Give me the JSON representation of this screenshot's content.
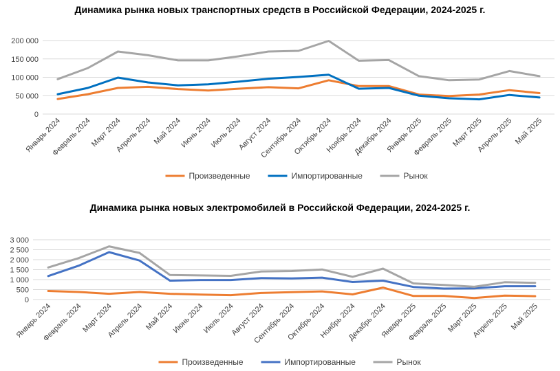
{
  "chart_data": [
    {
      "type": "line",
      "title": "Динамика рынка новых транспортных средств в Российской Федерации, 2024-2025 г.",
      "categories": [
        "Январь 2024",
        "Февраль 2024",
        "Март 2024",
        "Апрель 2024",
        "Май 2024",
        "Июнь 2024",
        "Июль 2024",
        "Август 2024",
        "Сентябрь 2024",
        "Октябрь 2024",
        "Ноябрь 2024",
        "Декабрь 2024",
        "Январь 2025",
        "Февраль 2025",
        "Март 2025",
        "Апрель 2025",
        "Май 2025"
      ],
      "ylim": [
        0,
        200000
      ],
      "yticks": [
        0,
        50000,
        100000,
        150000,
        200000
      ],
      "ytick_labels": [
        "0",
        "50 000",
        "100 000",
        "150 000",
        "200 000"
      ],
      "grid": true,
      "legend": "bottom",
      "series": [
        {
          "name": "Произведенные",
          "color": "#ED7D31",
          "values": [
            41000,
            54000,
            71000,
            74000,
            68000,
            64000,
            69000,
            73000,
            70000,
            92000,
            76000,
            76000,
            53000,
            49000,
            53000,
            65000,
            57000
          ]
        },
        {
          "name": "Импортированные",
          "color": "#0070C0",
          "values": [
            54000,
            71000,
            99000,
            86000,
            78000,
            81000,
            88000,
            96000,
            101000,
            107000,
            69000,
            71000,
            50000,
            43000,
            40000,
            52000,
            45000
          ]
        },
        {
          "name": "Рынок",
          "color": "#A5A5A5",
          "values": [
            95000,
            125000,
            170000,
            160000,
            146000,
            146000,
            157000,
            170000,
            172000,
            199000,
            145000,
            147000,
            103000,
            92000,
            94000,
            117000,
            103000
          ]
        }
      ]
    },
    {
      "type": "line",
      "title": "Динамика рынка новых электромобилей в Российской Федерации, 2024-2025 г.",
      "categories": [
        "Январь 2024",
        "Февраль 2024",
        "Март 2024",
        "Апрель 2024",
        "Май 2024",
        "Июнь 2024",
        "Июль 2024",
        "Август 2024",
        "Сентябрь 2024",
        "Октябрь 2024",
        "Ноябрь 2024",
        "Декабрь 2024",
        "Январь 2025",
        "Февраль 2025",
        "Март 2025",
        "Апрель 2025",
        "Май 2025"
      ],
      "ylim": [
        0,
        3000
      ],
      "yticks": [
        0,
        500,
        1000,
        1500,
        2000,
        2500,
        3000
      ],
      "ytick_labels": [
        "0",
        "500",
        "1 000",
        "1 500",
        "2 000",
        "2 500",
        "3 000"
      ],
      "grid": true,
      "legend": "bottom",
      "series": [
        {
          "name": "Произведенные",
          "color": "#ED7D31",
          "values": [
            430,
            380,
            290,
            380,
            290,
            250,
            220,
            330,
            370,
            410,
            260,
            600,
            180,
            180,
            80,
            200,
            170
          ]
        },
        {
          "name": "Импортированные",
          "color": "#4472C4",
          "values": [
            1180,
            1700,
            2380,
            1960,
            950,
            980,
            980,
            1080,
            1060,
            1100,
            880,
            950,
            630,
            550,
            560,
            670,
            670
          ]
        },
        {
          "name": "Рынок",
          "color": "#A5A5A5",
          "values": [
            1610,
            2080,
            2670,
            2340,
            1230,
            1210,
            1190,
            1410,
            1430,
            1510,
            1140,
            1550,
            810,
            730,
            640,
            870,
            840
          ]
        }
      ]
    }
  ]
}
